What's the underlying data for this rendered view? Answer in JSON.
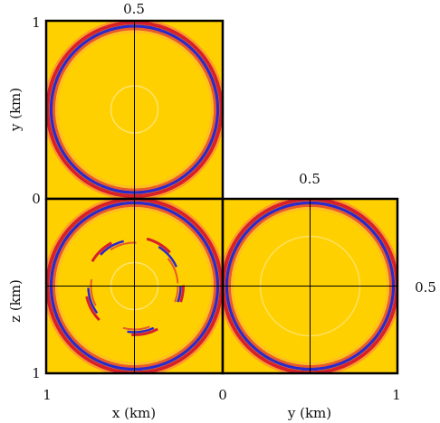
{
  "figure": {
    "labels": {
      "top_mid": "0.5",
      "y_axis_title": "y (km)",
      "y_top": "1",
      "y_zero": "0",
      "z_axis_title": "z (km)",
      "z_bottom": "1",
      "right_top_mid": "0.5",
      "right_side_mid": "0.5",
      "x_left": "1",
      "x_axis_title": "x (km)",
      "x_zero": "0",
      "y_axis_title_bottom": "y (km)",
      "y_right": "1"
    },
    "panels": [
      {
        "name": "xy-slice",
        "rings": [
          {
            "r": 0.98,
            "polarity": "red-blue"
          },
          {
            "r": 0.26,
            "polarity": "faint"
          }
        ]
      },
      {
        "name": "xz-slice",
        "rings": [
          {
            "r": 0.98,
            "polarity": "red-blue"
          },
          {
            "r": 0.52,
            "polarity": "dashed-red-blue"
          },
          {
            "r": 0.26,
            "polarity": "faint"
          }
        ]
      },
      {
        "name": "yz-slice",
        "rings": [
          {
            "r": 0.98,
            "polarity": "red-blue"
          },
          {
            "r": 0.55,
            "polarity": "faint"
          }
        ]
      }
    ],
    "colors": {
      "background": "#ffd000",
      "positive": "#d8202a",
      "negative": "#2a2acd",
      "frame": "#000000"
    }
  }
}
